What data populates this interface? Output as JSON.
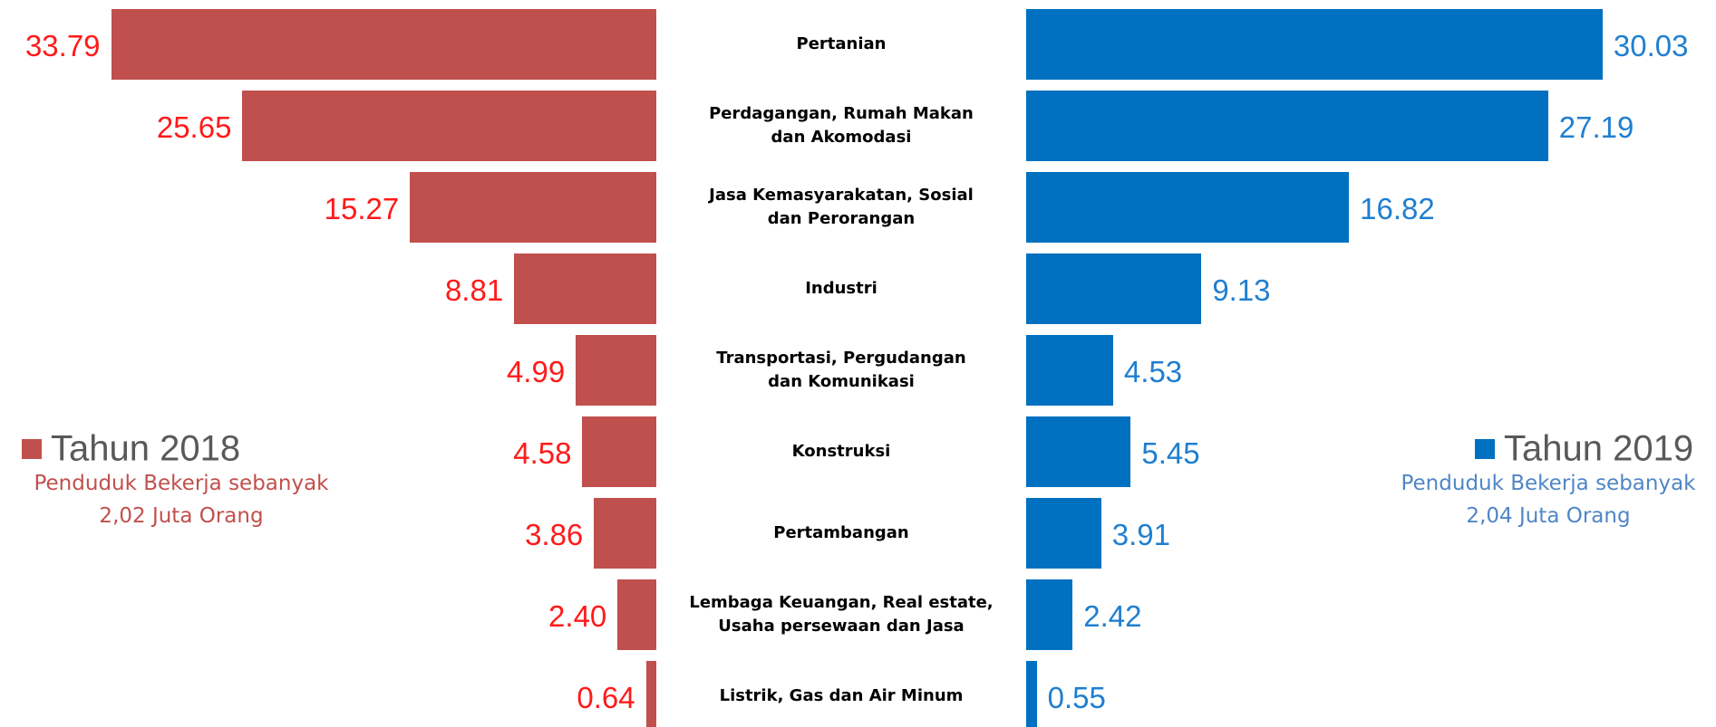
{
  "chart_data": {
    "type": "butterfly",
    "categories": [
      "Pertanian",
      "Perdagangan, Rumah Makan\ndan Akomodasi",
      "Jasa Kemasyarakatan, Sosial\ndan Perorangan",
      "Industri",
      "Transportasi, Pergudangan\ndan Komunikasi",
      "Konstruksi",
      "Pertambangan",
      "Lembaga Keuangan, Real estate,\nUsaha persewaan dan Jasa",
      "Listrik, Gas dan Air Minum"
    ],
    "xlim": [
      0,
      40
    ],
    "series": [
      {
        "name": "Tahun 2018",
        "color": "#c0504d",
        "label_color": "#ff1a1a",
        "note": [
          "Penduduk Bekerja sebanyak",
          "2,02 Juta Orang"
        ],
        "values": [
          33.79,
          25.65,
          15.27,
          8.81,
          4.99,
          4.58,
          3.86,
          2.4,
          0.64
        ],
        "value_labels": [
          "33.79",
          "25.65",
          "15.27",
          "8.81",
          "4.99",
          "4.58",
          "3.86",
          "2.40",
          "0.64"
        ]
      },
      {
        "name": "Tahun 2019",
        "color": "#0070c0",
        "label_color": "#1f7fd0",
        "note": [
          "Penduduk Bekerja sebanyak",
          "2,04 Juta Orang"
        ],
        "values": [
          30.03,
          27.19,
          16.82,
          9.13,
          4.53,
          5.45,
          3.91,
          2.42,
          0.55
        ],
        "value_labels": [
          "30.03",
          "27.19",
          "16.82",
          "9.13",
          "4.53",
          "5.45",
          "3.91",
          "2.42",
          "0.55"
        ]
      }
    ]
  }
}
